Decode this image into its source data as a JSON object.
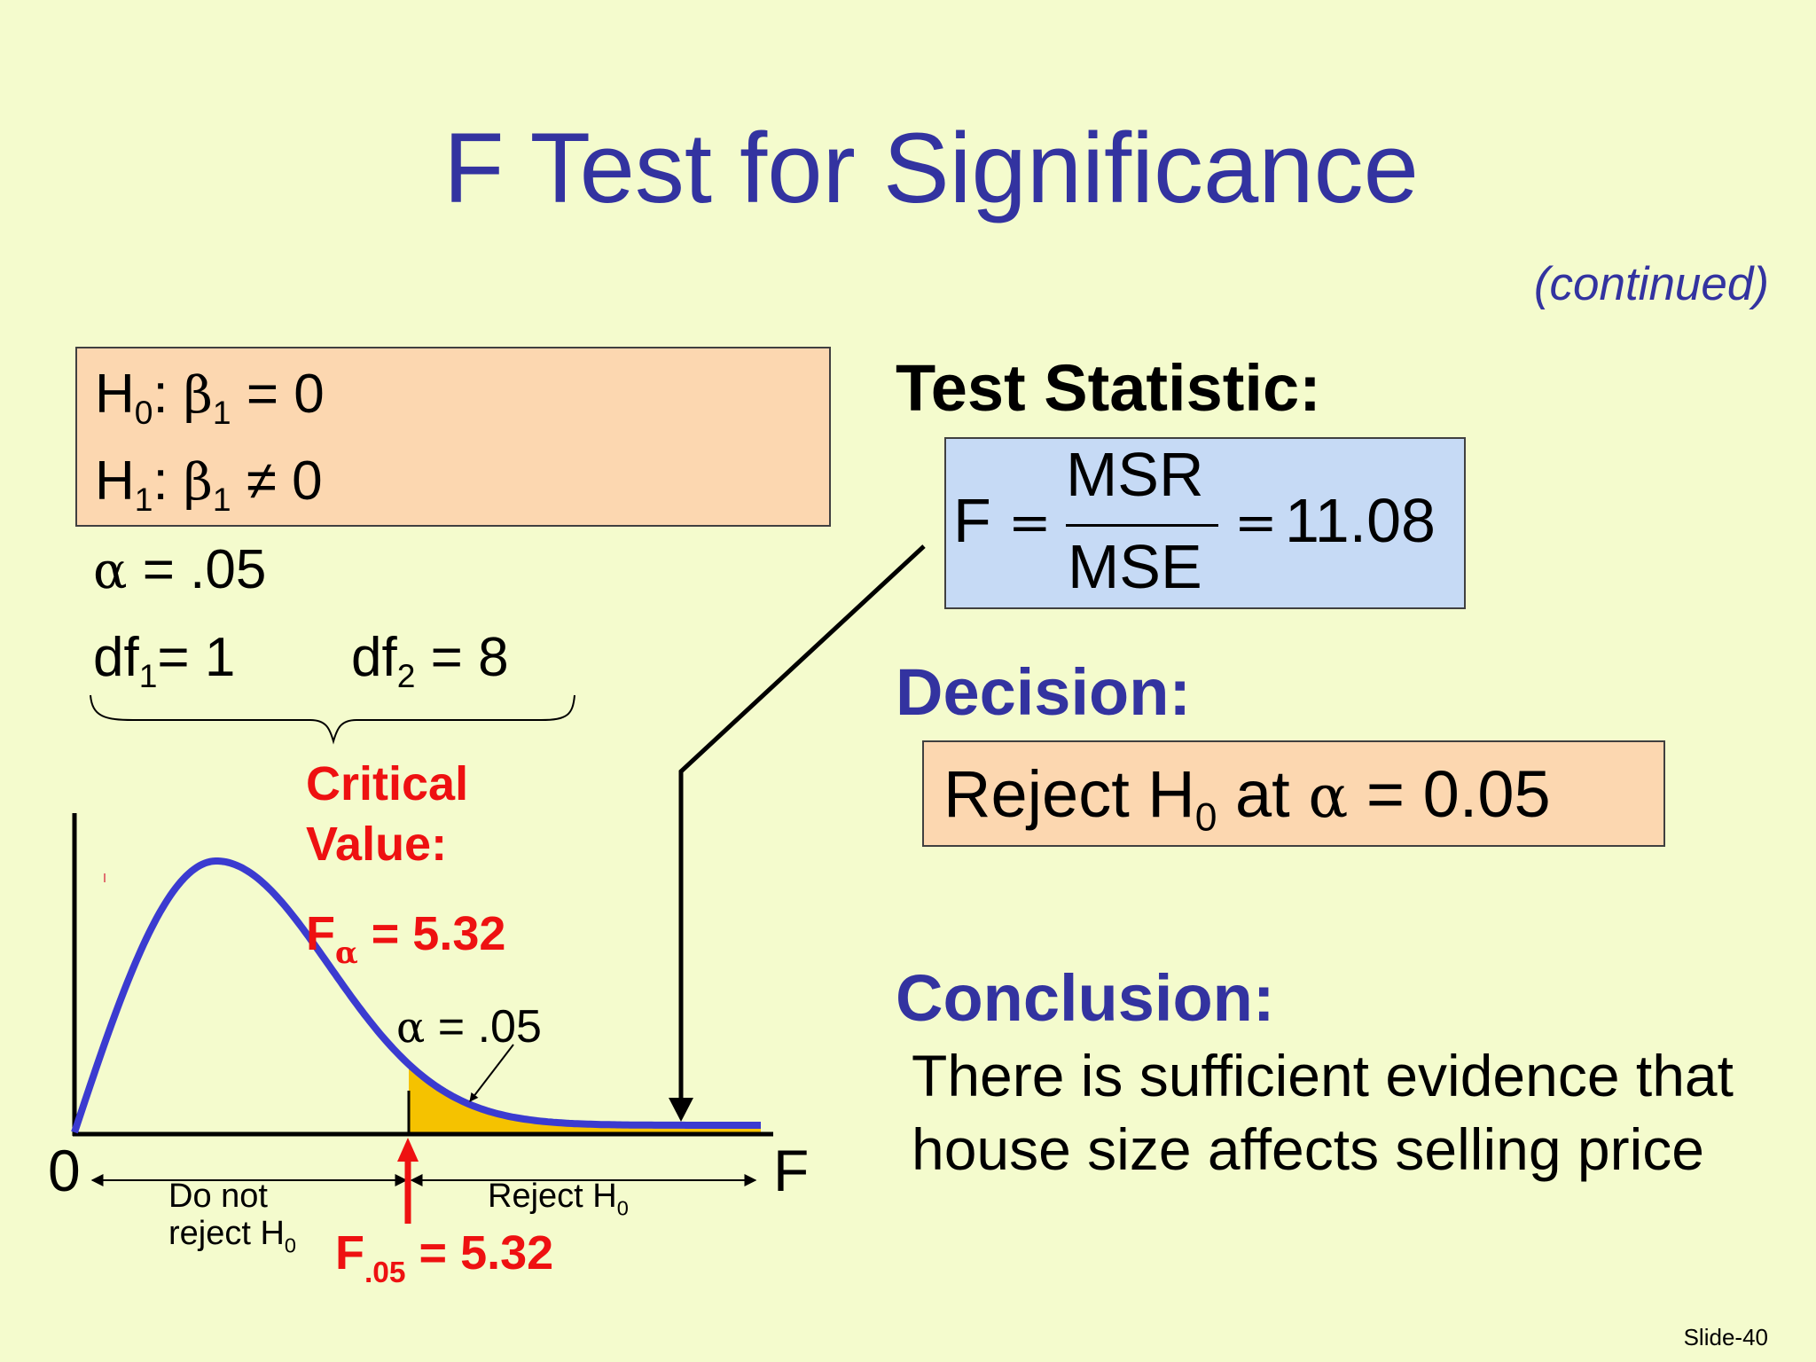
{
  "title": "F Test for Significance",
  "subtitle": "(continued)",
  "hypotheses": {
    "h0": {
      "letter": "H",
      "sub": "0",
      "beta": "β",
      "beta_sub": "1",
      "rest": " = 0"
    },
    "h1": {
      "letter": "H",
      "sub": "1",
      "beta": "β",
      "beta_sub": "1",
      "rest": " ≠ 0"
    },
    "alpha_symbol": "α",
    "alpha_rest": " = .05",
    "df1": {
      "label": "df",
      "sub": "1",
      "rest": "= 1"
    },
    "df2": {
      "label": "df",
      "sub": "2",
      "rest": " = 8"
    }
  },
  "test_statistic": {
    "heading": "Test Statistic:",
    "f": "F",
    "eq": "=",
    "numerator": "MSR",
    "denominator": "MSE",
    "value": "11.08"
  },
  "decision": {
    "heading": "Decision:",
    "text1": "Reject H",
    "sub": "0",
    "text2": " at  ",
    "alpha": "α",
    "text3": " = 0.05"
  },
  "conclusion": {
    "heading": "Conclusion:",
    "line1": "There is sufficient evidence that",
    "line2": "house size affects selling price"
  },
  "chart": {
    "critical_line1": "Critical",
    "critical_line2": "Value:",
    "f_alpha": {
      "f": "F",
      "sub": "α",
      "rest": " = 5.32"
    },
    "alpha_label": {
      "symbol": "α",
      "rest": " = .05"
    },
    "origin": "0",
    "x_axis": "F",
    "do_not_reject": {
      "line1": "Do not",
      "line2": "reject H",
      "sub": "0"
    },
    "reject": {
      "text": "Reject H",
      "sub": "0"
    },
    "f05": {
      "f": "F",
      "sub": ".05",
      "rest": " = 5.32"
    }
  },
  "colors": {
    "title": "#3333a0",
    "curve": "#3b3bd0",
    "reject_area": "#f5c200",
    "critical": "#ee1111",
    "background": "#f4fbcd"
  },
  "footer": "Slide-40"
}
